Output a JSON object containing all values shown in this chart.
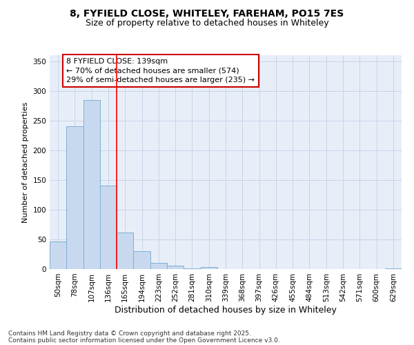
{
  "title_line1": "8, FYFIELD CLOSE, WHITELEY, FAREHAM, PO15 7ES",
  "title_line2": "Size of property relative to detached houses in Whiteley",
  "xlabel": "Distribution of detached houses by size in Whiteley",
  "ylabel": "Number of detached properties",
  "categories": [
    "50sqm",
    "78sqm",
    "107sqm",
    "136sqm",
    "165sqm",
    "194sqm",
    "223sqm",
    "252sqm",
    "281sqm",
    "310sqm",
    "339sqm",
    "368sqm",
    "397sqm",
    "426sqm",
    "455sqm",
    "484sqm",
    "513sqm",
    "542sqm",
    "571sqm",
    "600sqm",
    "629sqm"
  ],
  "values": [
    46,
    240,
    284,
    140,
    62,
    30,
    10,
    6,
    1,
    3,
    0,
    0,
    0,
    0,
    0,
    0,
    0,
    0,
    0,
    0,
    1
  ],
  "bar_color": "#c8d9ef",
  "bar_edge_color": "#7bafd4",
  "red_line_x": 3.5,
  "annotation_text": "8 FYFIELD CLOSE: 139sqm\n← 70% of detached houses are smaller (574)\n29% of semi-detached houses are larger (235) →",
  "annotation_box_facecolor": "#ffffff",
  "annotation_box_edgecolor": "#cc0000",
  "ylim": [
    0,
    360
  ],
  "yticks": [
    0,
    50,
    100,
    150,
    200,
    250,
    300,
    350
  ],
  "grid_color": "#c8d4e8",
  "plot_bg_color": "#e8eef8",
  "footer_line1": "Contains HM Land Registry data © Crown copyright and database right 2025.",
  "footer_line2": "Contains public sector information licensed under the Open Government Licence v3.0.",
  "title_fontsize": 10,
  "subtitle_fontsize": 9,
  "ylabel_fontsize": 8,
  "xlabel_fontsize": 9,
  "tick_fontsize": 7.5,
  "annotation_fontsize": 8,
  "footer_fontsize": 6.5
}
